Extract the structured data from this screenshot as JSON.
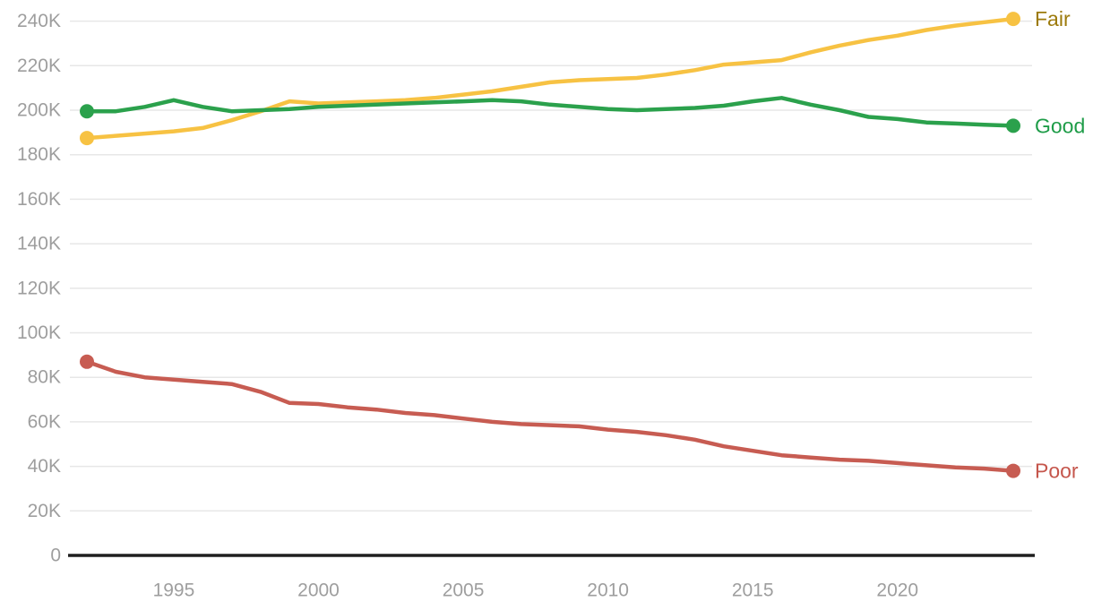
{
  "chart_data": {
    "type": "line",
    "title": "",
    "xlabel": "",
    "ylabel": "",
    "grid": "horizontal",
    "legend_position": "end-of-line-labels-right",
    "x": [
      1992,
      1993,
      1994,
      1995,
      1996,
      1997,
      1998,
      1999,
      2000,
      2001,
      2002,
      2003,
      2004,
      2005,
      2006,
      2007,
      2008,
      2009,
      2010,
      2011,
      2012,
      2013,
      2014,
      2015,
      2016,
      2017,
      2018,
      2019,
      2020,
      2021,
      2022,
      2023,
      2024
    ],
    "xlim": [
      1992,
      2024
    ],
    "ylim": [
      0,
      240000
    ],
    "x_ticks": [
      {
        "value": 1995,
        "label": "1995"
      },
      {
        "value": 2000,
        "label": "2000"
      },
      {
        "value": 2005,
        "label": "2005"
      },
      {
        "value": 2010,
        "label": "2010"
      },
      {
        "value": 2015,
        "label": "2015"
      },
      {
        "value": 2020,
        "label": "2020"
      }
    ],
    "y_ticks": [
      {
        "value": 0,
        "label": "0"
      },
      {
        "value": 20000,
        "label": "20K"
      },
      {
        "value": 40000,
        "label": "40K"
      },
      {
        "value": 60000,
        "label": "60K"
      },
      {
        "value": 80000,
        "label": "80K"
      },
      {
        "value": 100000,
        "label": "100K"
      },
      {
        "value": 120000,
        "label": "120K"
      },
      {
        "value": 140000,
        "label": "140K"
      },
      {
        "value": 160000,
        "label": "160K"
      },
      {
        "value": 180000,
        "label": "180K"
      },
      {
        "value": 200000,
        "label": "200K"
      },
      {
        "value": 220000,
        "label": "220K"
      },
      {
        "value": 240000,
        "label": "240K"
      }
    ],
    "series": [
      {
        "name": "Fair",
        "color": "#F7C243",
        "label_color": "#9C7A0B",
        "values": [
          187500,
          188500,
          189500,
          190500,
          192000,
          195500,
          199500,
          204000,
          203000,
          203500,
          204000,
          204500,
          205500,
          207000,
          208500,
          210500,
          212500,
          213500,
          214000,
          214500,
          216000,
          218000,
          220500,
          221500,
          222500,
          226000,
          229000,
          231500,
          233500,
          236000,
          238000,
          239500,
          241000
        ]
      },
      {
        "name": "Good",
        "color": "#2BA14C",
        "label_color": "#1E9C48",
        "values": [
          199500,
          199500,
          201500,
          204500,
          201500,
          199500,
          200000,
          200500,
          201500,
          202000,
          202500,
          203000,
          203500,
          204000,
          204500,
          204000,
          202500,
          201500,
          200500,
          200000,
          200500,
          201000,
          202000,
          204000,
          205500,
          202500,
          200000,
          197000,
          196000,
          194500,
          194000,
          193500,
          193000
        ]
      },
      {
        "name": "Poor",
        "color": "#C75C52",
        "label_color": "#C5564C",
        "values": [
          87000,
          82500,
          80000,
          79000,
          78000,
          77000,
          73500,
          68500,
          68000,
          66500,
          65500,
          64000,
          63000,
          61500,
          60000,
          59000,
          58500,
          58000,
          56500,
          55500,
          54000,
          52000,
          49000,
          47000,
          45000,
          44000,
          43000,
          42500,
          41500,
          40500,
          39500,
          39000,
          38000
        ]
      }
    ],
    "marker_positions": "first-and-last-point-only"
  },
  "colors": {
    "background": "#FFFFFF",
    "gridline": "#E7E7E7",
    "axis_line": "#1F1F1F",
    "tick_label": "#9E9E9E"
  }
}
